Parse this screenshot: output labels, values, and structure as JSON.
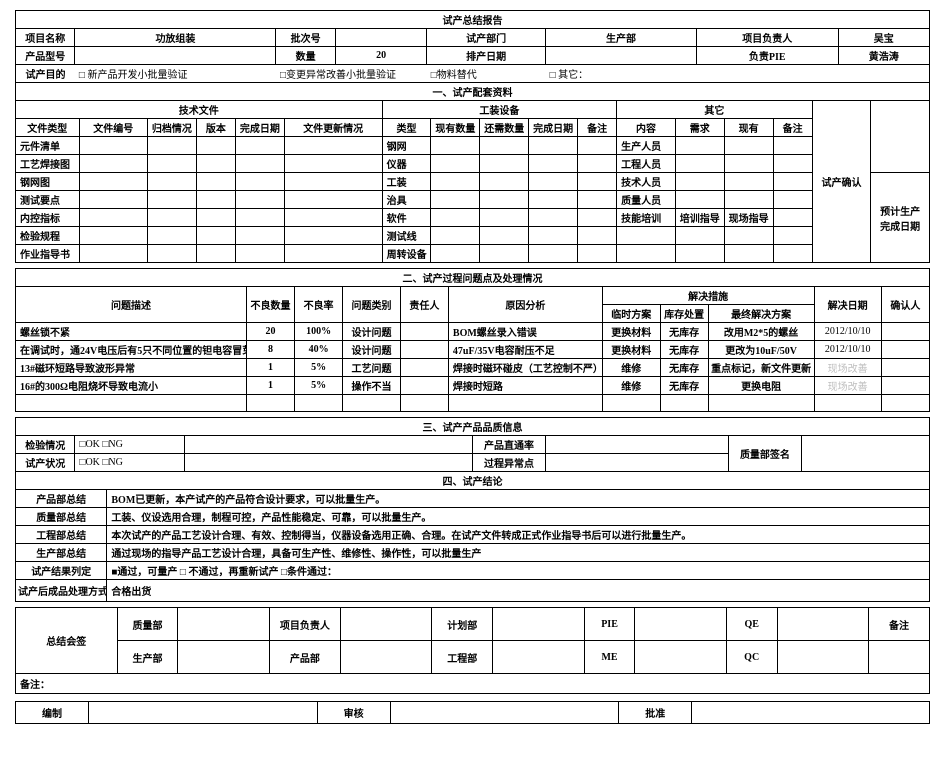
{
  "colors": {
    "text": "#000000",
    "muted": "#bfbfbf",
    "bg": "#ffffff"
  },
  "title": "试产总结报告",
  "header": {
    "lbl_project_name": "项目名称",
    "val_project_name": "功放组装",
    "lbl_batch_no": "批次号",
    "val_batch_no": "",
    "lbl_try_dept": "试产部门",
    "val_try_dept": "生产部",
    "lbl_proj_owner": "项目负责人",
    "val_proj_owner": "吴宝",
    "lbl_product_model": "产品型号",
    "val_product_model": "",
    "lbl_qty": "数量",
    "val_qty": "20",
    "lbl_schedule_date": "排产日期",
    "val_schedule_date": "",
    "lbl_pie": "负责PIE",
    "val_pie": "黄浩涛",
    "lbl_purpose": "试产目的",
    "purpose_a": "□ 新产品开发小批量验证",
    "purpose_b": "□变更异常改善小批量验证",
    "purpose_c": "□物料替代",
    "purpose_d": "□ 其它："
  },
  "s1": {
    "heading": "一、试产配套资料",
    "g1": "技术文件",
    "g2": "工装设备",
    "g3": "其它",
    "confirm": "试产确认",
    "h_doc_type": "文件类型",
    "h_doc_no": "文件编号",
    "h_archive": "归档情况",
    "h_version": "版本",
    "h_done_date": "完成日期",
    "h_doc_update": "文件更新情况",
    "h_kind": "类型",
    "h_have_qty": "现有数量",
    "h_need_qty": "还需数量",
    "h_done_date2": "完成日期",
    "h_remark2": "备注",
    "h_content": "内容",
    "h_need": "需求",
    "h_exist": "现有",
    "h_remark3": "备注",
    "rows_doc": [
      "元件清单",
      "工艺焊接图",
      "钢网图",
      "测试要点",
      "内控指标",
      "检验规程",
      "作业指导书"
    ],
    "rows_eq": [
      "钢网",
      "仪器",
      "工装",
      "治具",
      "软件",
      "测试线",
      "周转设备"
    ],
    "rows_other": [
      "生产人员",
      "工程人员",
      "技术人员",
      "质量人员",
      "技能培训",
      "",
      ""
    ],
    "other_r5_c2": "培训指导",
    "other_r5_c3": "现场指导",
    "schedule_box_l1": "预计生产",
    "schedule_box_l2": "完成日期"
  },
  "s2": {
    "heading": "二、试产过程问题点及处理情况",
    "h_problem": "问题描述",
    "h_bad_qty": "不良数量",
    "h_bad_rate": "不良率",
    "h_problem_type": "问题类别",
    "h_owner": "责任人",
    "h_cause": "原因分析",
    "h_measure_group": "解决措施",
    "h_temp": "临时方案",
    "h_stock": "库存处置",
    "h_final": "最终解决方案",
    "h_solve_date": "解决日期",
    "h_confirm": "确认人",
    "rows": [
      {
        "desc": "螺丝锁不紧",
        "qty": "20",
        "rate": "100%",
        "type": "设计问题",
        "owner": "",
        "cause": "BOM螺丝录入错误",
        "temp": "更换材料",
        "stock": "无库存",
        "final": "改用M2*5的螺丝",
        "date": "2012/10/10",
        "confirm": ""
      },
      {
        "desc": "在调试时，通24V电压后有5只不同位置的钽电容冒芽",
        "qty": "8",
        "rate": "40%",
        "type": "设计问题",
        "owner": "",
        "cause": "47uF/35V电容耐压不足",
        "temp": "更换材料",
        "stock": "无库存",
        "final": "更改为10uF/50V",
        "date": "2012/10/10",
        "confirm": ""
      },
      {
        "desc": "13#磁环短路导致波形异常",
        "qty": "1",
        "rate": "5%",
        "type": "工艺问题",
        "owner": "",
        "cause": "焊接时磁环碰皮（工艺控制不严）",
        "temp": "维修",
        "stock": "无库存",
        "final": "重点标记，新文件更新",
        "date": "现场改善",
        "confirm": ""
      },
      {
        "desc": "16#的300Ω电阻烧坏导致电流小",
        "qty": "1",
        "rate": "5%",
        "type": "操作不当",
        "owner": "",
        "cause": "焊接时短路",
        "temp": "维修",
        "stock": "无库存",
        "final": "更换电阻",
        "date": "现场改善",
        "confirm": ""
      },
      {
        "desc": "",
        "qty": "",
        "rate": "",
        "type": "",
        "owner": "",
        "cause": "",
        "temp": "",
        "stock": "",
        "final": "",
        "date": "",
        "confirm": ""
      }
    ]
  },
  "s3": {
    "heading": "三、试产产品品质信息",
    "lbl_inspect": "检验情况",
    "inspect_opts": "□OK  □NG",
    "lbl_pass": "产品直通率",
    "lbl_try_status": "试产状况",
    "status_opts": "□OK  □NG",
    "lbl_abnormal": "过程异常点",
    "lbl_qsign": "质量部签名"
  },
  "s4": {
    "heading": "四、试产结论",
    "rows": [
      {
        "k": "产品部总结",
        "v": "BOM已更新，本产试产的产品符合设计要求，可以批量生产。"
      },
      {
        "k": "质量部总结",
        "v": "工装、仪设选用合理，制程可控，产品性能稳定、可靠，可以批量生产。"
      },
      {
        "k": "工程部总结",
        "v": "本次试产的产品工艺设计合理、有效、控制得当，仪器设备选用正确、合理。在试产文件转成正式作业指导书后可以进行批量生产。"
      },
      {
        "k": "生产部总结",
        "v": "通过现场的指导产品工艺设计合理，具备可生产性、维修性、操作性，可以批量生产"
      }
    ],
    "result_row_label": "试产结果列定",
    "result_opts": "■通过，可量产        □ 不通过，再重新试产          □条件通过：",
    "handling_label": "试产后成品处理方式：",
    "handling_value": "合格出货"
  },
  "sign": {
    "lbl": "总结会签",
    "r1": [
      "质量部",
      "",
      "项目负责人",
      "",
      "计划部",
      "",
      "PIE",
      "",
      "QE",
      "",
      "备注"
    ],
    "r2": [
      "生产部",
      "",
      "产品部",
      "",
      "工程部",
      "",
      "ME",
      "",
      "QC",
      "",
      ""
    ]
  },
  "footer": {
    "remark": "备注：",
    "edit": "编制",
    "review": "审核",
    "approve": "批准"
  }
}
